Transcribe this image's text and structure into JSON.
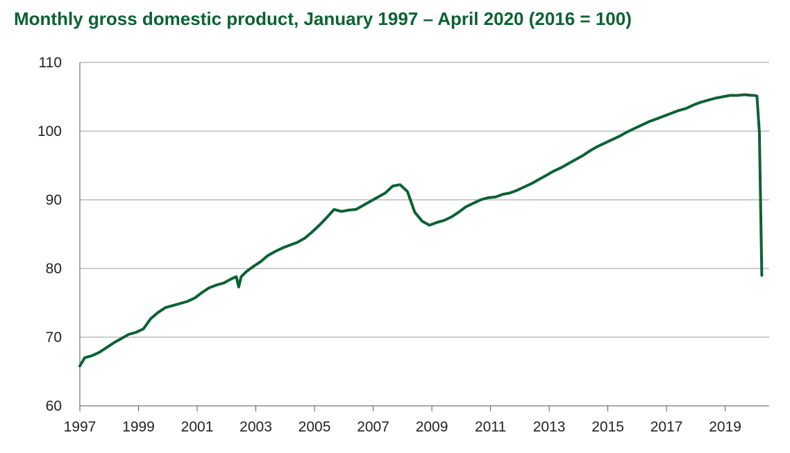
{
  "chart_data": {
    "type": "line",
    "title": "Monthly gross domestic product, January 1997 – April 2020 (2016 = 100)",
    "xlabel": "",
    "ylabel": "",
    "x_range": [
      "1997-01",
      "2020-04"
    ],
    "x_tick_labels": [
      "1997",
      "1999",
      "2001",
      "2003",
      "2005",
      "2007",
      "2009",
      "2011",
      "2013",
      "2015",
      "2017",
      "2019"
    ],
    "ylim": [
      60,
      110
    ],
    "y_tick_labels": [
      "60",
      "70",
      "80",
      "90",
      "100",
      "110"
    ],
    "grid": "horizontal",
    "line_color": "#0b6233",
    "series": [
      {
        "x": [
          "1997-01",
          "1997-03",
          "1997-06",
          "1997-09",
          "1997-12",
          "1998-03",
          "1998-06",
          "1998-09",
          "1998-12",
          "1999-03",
          "1999-06",
          "1999-09",
          "1999-12",
          "2000-03",
          "2000-06",
          "2000-09",
          "2000-12",
          "2001-03",
          "2001-06",
          "2001-09",
          "2001-12",
          "2002-03",
          "2002-05",
          "2002-06",
          "2002-07",
          "2002-09",
          "2002-12",
          "2003-03",
          "2003-06",
          "2003-09",
          "2003-12",
          "2004-03",
          "2004-06",
          "2004-09",
          "2004-12",
          "2005-03",
          "2005-06",
          "2005-09",
          "2005-12",
          "2006-03",
          "2006-06",
          "2006-09",
          "2006-12",
          "2007-03",
          "2007-06",
          "2007-09",
          "2007-12",
          "2008-03",
          "2008-06",
          "2008-09",
          "2008-12",
          "2009-03",
          "2009-06",
          "2009-09",
          "2009-12",
          "2010-03",
          "2010-06",
          "2010-09",
          "2010-12",
          "2011-03",
          "2011-06",
          "2011-09",
          "2011-12",
          "2012-03",
          "2012-06",
          "2012-09",
          "2012-12",
          "2013-03",
          "2013-06",
          "2013-09",
          "2013-12",
          "2014-03",
          "2014-06",
          "2014-09",
          "2014-12",
          "2015-03",
          "2015-06",
          "2015-09",
          "2015-12",
          "2016-03",
          "2016-06",
          "2016-09",
          "2016-12",
          "2017-03",
          "2017-06",
          "2017-09",
          "2017-12",
          "2018-03",
          "2018-06",
          "2018-09",
          "2018-12",
          "2019-03",
          "2019-06",
          "2019-09",
          "2019-12",
          "2020-01",
          "2020-02",
          "2020-03",
          "2020-04"
        ],
        "y": [
          65.8,
          67.0,
          67.3,
          67.8,
          68.5,
          69.2,
          69.8,
          70.4,
          70.7,
          71.2,
          72.7,
          73.6,
          74.3,
          74.6,
          74.9,
          75.2,
          75.7,
          76.5,
          77.2,
          77.6,
          77.9,
          78.5,
          78.8,
          77.3,
          78.8,
          79.5,
          80.3,
          81.0,
          81.9,
          82.5,
          83.0,
          83.4,
          83.8,
          84.4,
          85.3,
          86.3,
          87.4,
          88.6,
          88.3,
          88.5,
          88.6,
          89.2,
          89.8,
          90.4,
          91.0,
          92.0,
          92.2,
          91.2,
          88.2,
          86.9,
          86.3,
          86.7,
          87.0,
          87.5,
          88.2,
          89.0,
          89.5,
          90.0,
          90.3,
          90.4,
          90.8,
          91.0,
          91.4,
          91.9,
          92.4,
          93.0,
          93.6,
          94.2,
          94.7,
          95.3,
          95.9,
          96.5,
          97.2,
          97.8,
          98.3,
          98.8,
          99.3,
          99.9,
          100.4,
          100.9,
          101.4,
          101.8,
          102.2,
          102.6,
          103.0,
          103.3,
          103.8,
          104.2,
          104.5,
          104.8,
          105.0,
          105.2,
          105.2,
          105.3,
          105.2,
          105.2,
          105.1,
          99.8,
          79.0
        ]
      }
    ]
  }
}
